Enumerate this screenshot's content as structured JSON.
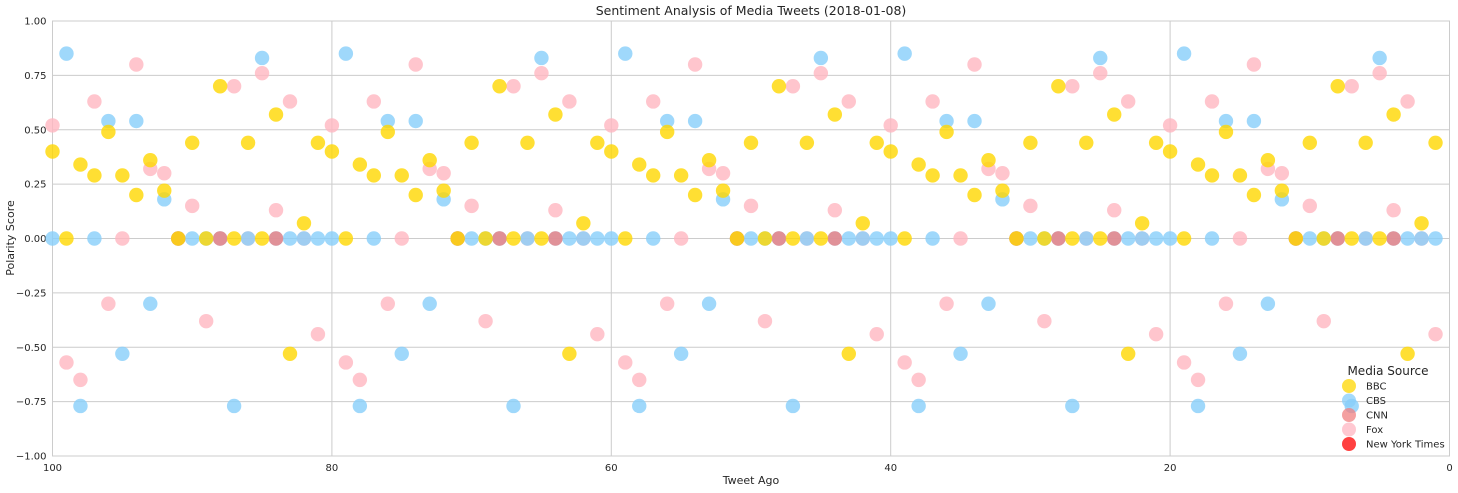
{
  "chart_data": {
    "type": "scatter",
    "title": "Sentiment Analysis of Media Tweets (2018-01-08)",
    "xlabel": "Tweet Ago",
    "ylabel": "Polarity Score",
    "xlim": [
      100,
      0
    ],
    "ylim": [
      -1.0,
      1.0
    ],
    "x_ticks": [
      100,
      80,
      60,
      40,
      20,
      0
    ],
    "x_tick_labels": [
      "100",
      "80",
      "60",
      "40",
      "20",
      "0"
    ],
    "y_ticks": [
      1.0,
      0.75,
      0.5,
      0.25,
      0.0,
      -0.25,
      -0.5,
      -0.75,
      -1.0
    ],
    "y_tick_labels": [
      "1.00",
      "0.75",
      "0.50",
      "0.25",
      "0.00",
      "−0.25",
      "−0.50",
      "−0.75",
      "−1.00"
    ],
    "grid": true,
    "legend": {
      "title": "Media Source",
      "position": "lower-right",
      "entries": [
        {
          "name": "BBC",
          "color": "#FFD700"
        },
        {
          "name": "CBS",
          "color": "#87CEFA"
        },
        {
          "name": "CNN",
          "color": "#F08080"
        },
        {
          "name": "Fox",
          "color": "#FFB6C1"
        },
        {
          "name": "New York Times",
          "color": "#FF0000"
        }
      ]
    },
    "series": [
      {
        "name": "Fox",
        "color": "#FFB6C1",
        "x": [
          100,
          99,
          98,
          97,
          96,
          95,
          94,
          93,
          92,
          91,
          90,
          89,
          88,
          87,
          86,
          85,
          84,
          83,
          82,
          81,
          80,
          79,
          78,
          77,
          76,
          75,
          74,
          73,
          72,
          71,
          70,
          69,
          68,
          67,
          66,
          65,
          64,
          63,
          62,
          61,
          60,
          59,
          58,
          57,
          56,
          55,
          54,
          53,
          52,
          51,
          50,
          49,
          48,
          47,
          46,
          45,
          44,
          43,
          42,
          41,
          40,
          39,
          38,
          37,
          36,
          35,
          34,
          33,
          32,
          31,
          30,
          29,
          28,
          27,
          26,
          25,
          24,
          23,
          22,
          21,
          20,
          19,
          18,
          17,
          16,
          15,
          14,
          13,
          12,
          11,
          10,
          9,
          8,
          7,
          6,
          5,
          4,
          3,
          2,
          1
        ],
        "y": [
          0.52,
          -0.57,
          -0.65,
          0.63,
          -0.3,
          0.0,
          0.8,
          0.32,
          0.3,
          0.0,
          0.15,
          -0.38,
          0.0,
          0.7,
          0.0,
          0.76,
          0.13,
          0.63,
          0.0,
          -0.44,
          0.52,
          -0.57,
          -0.65,
          0.63,
          -0.3,
          0.0,
          0.8,
          0.32,
          0.3,
          0.0,
          0.15,
          -0.38,
          0.0,
          0.7,
          0.0,
          0.76,
          0.13,
          0.63,
          0.0,
          -0.44,
          0.52,
          -0.57,
          -0.65,
          0.63,
          -0.3,
          0.0,
          0.8,
          0.32,
          0.3,
          0.0,
          0.15,
          -0.38,
          0.0,
          0.7,
          0.0,
          0.76,
          0.13,
          0.63,
          0.0,
          -0.44,
          0.52,
          -0.57,
          -0.65,
          0.63,
          -0.3,
          0.0,
          0.8,
          0.32,
          0.3,
          0.0,
          0.15,
          -0.38,
          0.0,
          0.7,
          0.0,
          0.76,
          0.13,
          0.63,
          0.0,
          -0.44,
          0.52,
          -0.57,
          -0.65,
          0.63,
          -0.3,
          0.0,
          0.8,
          0.32,
          0.3,
          0.0,
          0.15,
          -0.38,
          0.0,
          0.7,
          0.0,
          0.76,
          0.13,
          0.63,
          0.0,
          -0.44
        ]
      },
      {
        "name": "CBS",
        "color": "#87CEFA",
        "x": [
          100,
          99,
          98,
          97,
          96,
          95,
          94,
          93,
          92,
          91,
          90,
          89,
          88,
          87,
          86,
          85,
          84,
          83,
          82,
          81,
          80,
          79,
          78,
          77,
          76,
          75,
          74,
          73,
          72,
          71,
          70,
          69,
          68,
          67,
          66,
          65,
          64,
          63,
          62,
          61,
          60,
          59,
          58,
          57,
          56,
          55,
          54,
          53,
          52,
          51,
          50,
          49,
          48,
          47,
          46,
          45,
          44,
          43,
          42,
          41,
          40,
          39,
          38,
          37,
          36,
          35,
          34,
          33,
          32,
          31,
          30,
          29,
          28,
          27,
          26,
          25,
          24,
          23,
          22,
          21,
          20,
          19,
          18,
          17,
          16,
          15,
          14,
          13,
          12,
          11,
          10,
          9,
          8,
          7,
          6,
          5,
          4,
          3,
          2,
          1
        ],
        "y": [
          0.0,
          0.85,
          -0.77,
          0.0,
          0.54,
          -0.53,
          0.54,
          -0.3,
          0.18,
          0.0,
          0.0,
          0.0,
          0.0,
          -0.77,
          0.0,
          0.83,
          0.0,
          0.0,
          0.0,
          0.0,
          0.0,
          0.85,
          -0.77,
          0.0,
          0.54,
          -0.53,
          0.54,
          -0.3,
          0.18,
          0.0,
          0.0,
          0.0,
          0.0,
          -0.77,
          0.0,
          0.83,
          0.0,
          0.0,
          0.0,
          0.0,
          0.0,
          0.85,
          -0.77,
          0.0,
          0.54,
          -0.53,
          0.54,
          -0.3,
          0.18,
          0.0,
          0.0,
          0.0,
          0.0,
          -0.77,
          0.0,
          0.83,
          0.0,
          0.0,
          0.0,
          0.0,
          0.0,
          0.85,
          -0.77,
          0.0,
          0.54,
          -0.53,
          0.54,
          -0.3,
          0.18,
          0.0,
          0.0,
          0.0,
          0.0,
          -0.77,
          0.0,
          0.83,
          0.0,
          0.0,
          0.0,
          0.0,
          0.0,
          0.85,
          -0.77,
          0.0,
          0.54,
          -0.53,
          0.54,
          -0.3,
          0.18,
          0.0,
          0.0,
          0.0,
          0.0,
          -0.77,
          0.0,
          0.83,
          0.0,
          0.0,
          0.0,
          0.0
        ]
      },
      {
        "name": "CNN",
        "color": "#F08080",
        "x": [
          91,
          88,
          84,
          71,
          68,
          64,
          51,
          48,
          44,
          31,
          28,
          24,
          11,
          8,
          4
        ],
        "y": [
          0.0,
          0.0,
          0.0,
          0.0,
          0.0,
          0.0,
          0.0,
          0.0,
          0.0,
          0.0,
          0.0,
          0.0,
          0.0,
          0.0,
          0.0
        ]
      },
      {
        "name": "New York Times",
        "color": "#FF0000",
        "x": [],
        "y": []
      },
      {
        "name": "BBC",
        "color": "#FFD700",
        "x": [
          100,
          99,
          98,
          97,
          96,
          95,
          94,
          93,
          92,
          91,
          90,
          89,
          88,
          87,
          86,
          85,
          84,
          83,
          82,
          81,
          80,
          79,
          78,
          77,
          76,
          75,
          74,
          73,
          72,
          71,
          70,
          69,
          68,
          67,
          66,
          65,
          64,
          63,
          62,
          61,
          60,
          59,
          58,
          57,
          56,
          55,
          54,
          53,
          52,
          51,
          50,
          49,
          48,
          47,
          46,
          45,
          44,
          43,
          42,
          41,
          40,
          39,
          38,
          37,
          36,
          35,
          34,
          33,
          32,
          31,
          30,
          29,
          28,
          27,
          26,
          25,
          24,
          23,
          22,
          21,
          20,
          19,
          18,
          17,
          16,
          15,
          14,
          13,
          12,
          11,
          10,
          9,
          8,
          7,
          6,
          5,
          4,
          3,
          2,
          1
        ],
        "y": [
          0.4,
          0.0,
          0.34,
          0.29,
          0.49,
          0.29,
          0.2,
          0.36,
          0.22,
          0.0,
          0.44,
          0.0,
          0.7,
          0.0,
          0.44,
          0.0,
          0.57,
          -0.53,
          0.07,
          0.44,
          0.4,
          0.0,
          0.34,
          0.29,
          0.49,
          0.29,
          0.2,
          0.36,
          0.22,
          0.0,
          0.44,
          0.0,
          0.7,
          0.0,
          0.44,
          0.0,
          0.57,
          -0.53,
          0.07,
          0.44,
          0.4,
          0.0,
          0.34,
          0.29,
          0.49,
          0.29,
          0.2,
          0.36,
          0.22,
          0.0,
          0.44,
          0.0,
          0.7,
          0.0,
          0.44,
          0.0,
          0.57,
          -0.53,
          0.07,
          0.44,
          0.4,
          0.0,
          0.34,
          0.29,
          0.49,
          0.29,
          0.2,
          0.36,
          0.22,
          0.0,
          0.44,
          0.0,
          0.7,
          0.0,
          0.44,
          0.0,
          0.57,
          -0.53,
          0.07,
          0.44,
          0.4,
          0.0,
          0.34,
          0.29,
          0.49,
          0.29,
          0.2,
          0.36,
          0.22,
          0.0,
          0.44,
          0.0,
          0.7,
          0.0,
          0.44,
          0.0,
          0.57,
          -0.53,
          0.07,
          0.44
        ]
      }
    ]
  }
}
